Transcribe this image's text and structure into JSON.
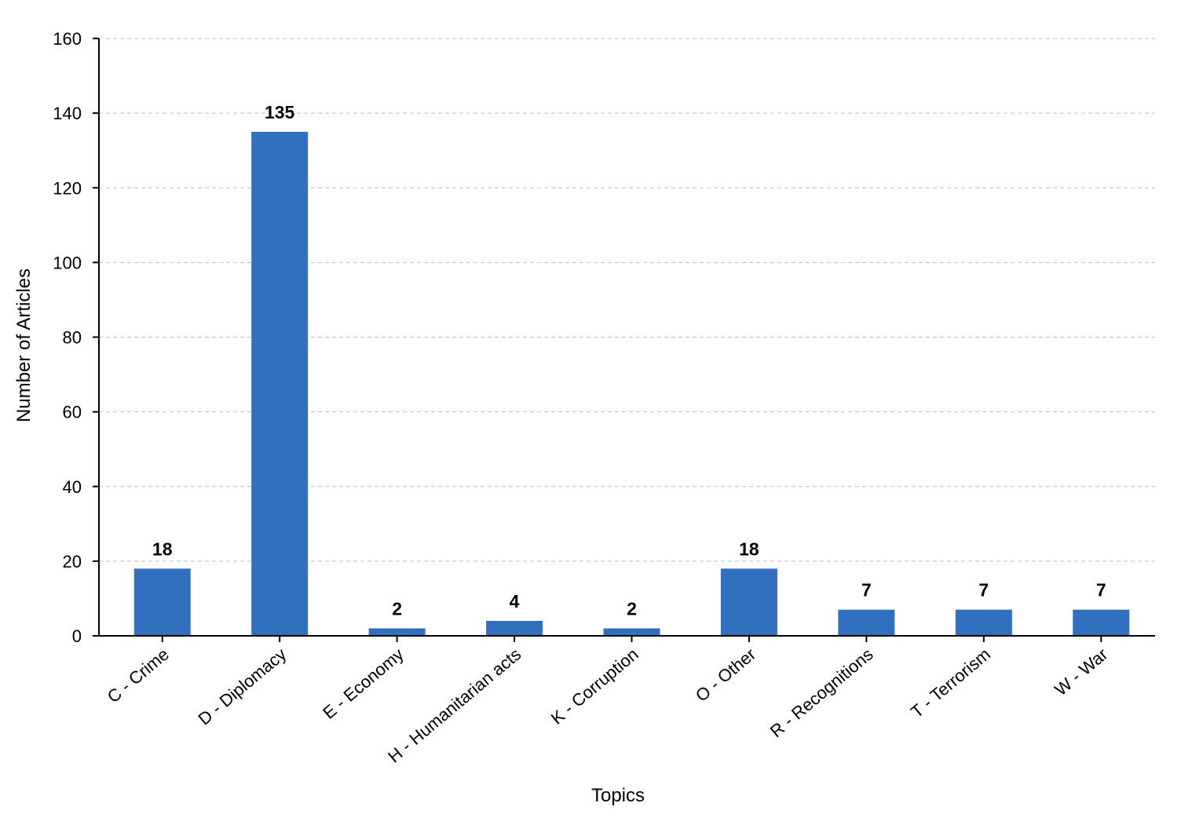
{
  "chart_data": {
    "type": "bar",
    "title": "",
    "xlabel": "Topics",
    "ylabel": "Number of Articles",
    "ylim": [
      0,
      160
    ],
    "yticks": [
      0,
      20,
      40,
      60,
      80,
      100,
      120,
      140,
      160
    ],
    "grid": true,
    "categories": [
      "C - Crime",
      "D - Diplomacy",
      "E - Economy",
      "H - Humanitarian acts",
      "K - Corruption",
      "O - Other",
      "R - Recognitions",
      "T - Terrorism",
      "W - War"
    ],
    "values": [
      18,
      135,
      2,
      4,
      2,
      18,
      7,
      7,
      7
    ],
    "data_labels": [
      "18",
      "135",
      "2",
      "4",
      "2",
      "18",
      "7",
      "7",
      "7"
    ],
    "bar_color": "#3070BF",
    "grid_color": "#BFBFBF",
    "axis_color": "#000000",
    "text_color": "#000000"
  }
}
